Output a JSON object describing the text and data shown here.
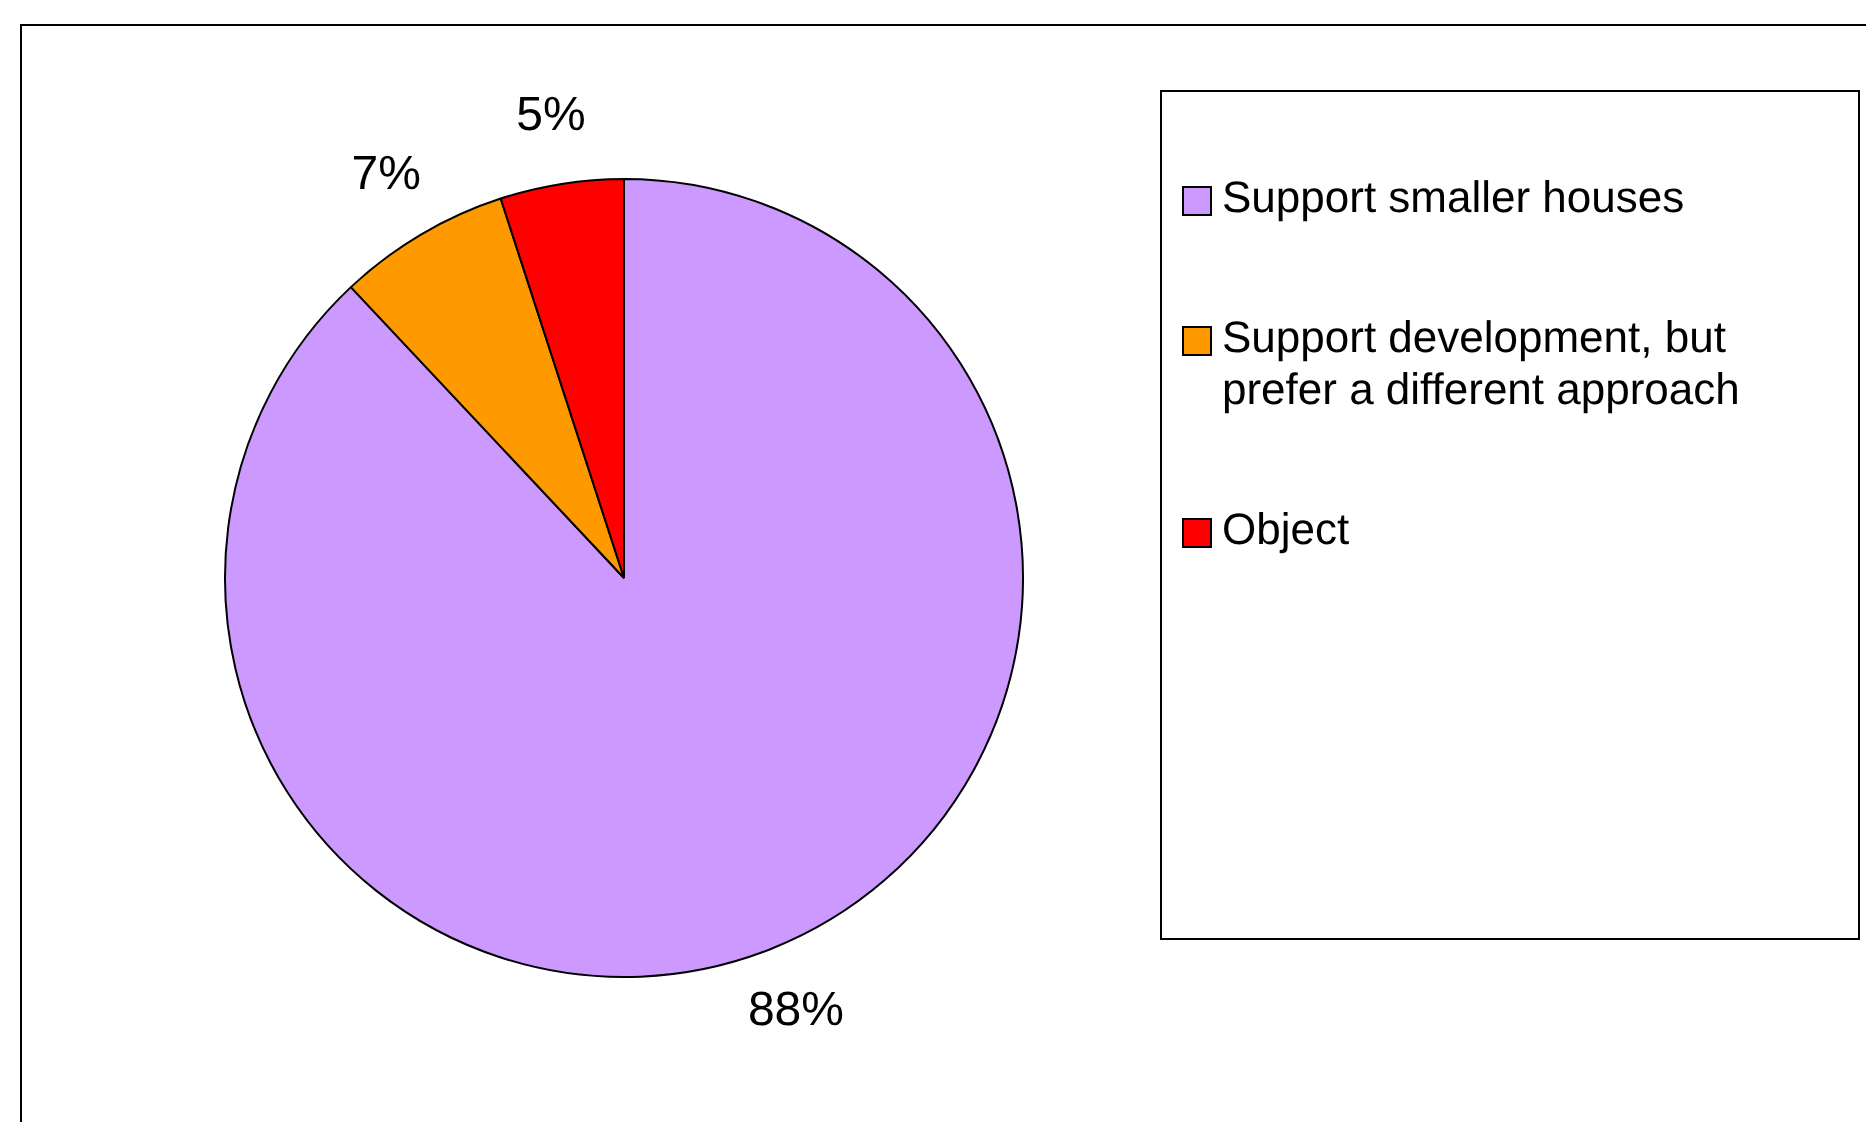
{
  "chart_data": {
    "type": "pie",
    "categories": [
      "Support smaller houses",
      "Support development, but prefer a different approach",
      "Object"
    ],
    "values": [
      88,
      7,
      5
    ],
    "colors": [
      "#cc99ff",
      "#ff9900",
      "#ff0000"
    ],
    "value_labels": [
      "88%",
      "7%",
      "5%"
    ],
    "legend": "right"
  }
}
